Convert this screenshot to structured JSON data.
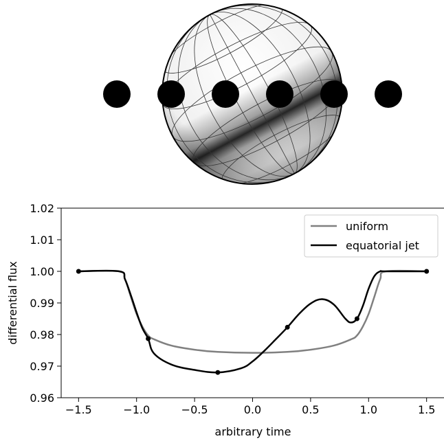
{
  "chart_data": {
    "type": "line",
    "title": "",
    "xlabel": "arbitrary time",
    "ylabel": "differential flux",
    "xlim": [
      -1.65,
      1.65
    ],
    "ylim": [
      0.96,
      1.02
    ],
    "grid": false,
    "legend_position": "top-right",
    "xticks": [
      -1.5,
      -1.0,
      -0.5,
      0.0,
      0.5,
      1.0,
      1.5
    ],
    "xtick_labels": [
      "−1.5",
      "−1.0",
      "−0.5",
      "0.0",
      "0.5",
      "1.0",
      "1.5"
    ],
    "yticks": [
      0.96,
      0.97,
      0.98,
      0.99,
      1.0,
      1.01,
      1.02
    ],
    "ytick_labels": [
      "0.96",
      "0.97",
      "0.98",
      "0.99",
      "1.00",
      "1.01",
      "1.02"
    ],
    "series": [
      {
        "name": "uniform",
        "color": "#808080",
        "x": [
          -1.5,
          -1.15,
          -1.1,
          -1.05,
          -1.0,
          -0.95,
          -0.9,
          -0.85,
          -0.7,
          -0.5,
          -0.3,
          0.0,
          0.3,
          0.5,
          0.7,
          0.85,
          0.9,
          0.95,
          1.0,
          1.05,
          1.1,
          1.15,
          1.5
        ],
        "values": [
          1.0,
          1.0,
          0.9975,
          0.992,
          0.9865,
          0.9825,
          0.9797,
          0.9785,
          0.9765,
          0.9752,
          0.9745,
          0.9742,
          0.9745,
          0.9752,
          0.9765,
          0.9785,
          0.9797,
          0.9825,
          0.9865,
          0.992,
          0.9975,
          1.0,
          1.0
        ]
      },
      {
        "name": "equatorial jet",
        "color": "#000000",
        "x": [
          -1.5,
          -1.15,
          -1.1,
          -1.05,
          -1.0,
          -0.95,
          -0.9,
          -0.85,
          -0.7,
          -0.5,
          -0.3,
          -0.1,
          0.0,
          0.1,
          0.2,
          0.3,
          0.4,
          0.5,
          0.6,
          0.7,
          0.8,
          0.85,
          0.9,
          0.95,
          1.0,
          1.05,
          1.1,
          1.15,
          1.5
        ],
        "values": [
          1.0,
          1.0,
          0.9975,
          0.9925,
          0.987,
          0.982,
          0.9787,
          0.974,
          0.9705,
          0.9688,
          0.968,
          0.9693,
          0.9715,
          0.9748,
          0.9785,
          0.9823,
          0.9865,
          0.9898,
          0.9912,
          0.9895,
          0.985,
          0.9838,
          0.985,
          0.989,
          0.9945,
          0.9985,
          1.0,
          1.0,
          1.0
        ]
      }
    ],
    "markers": {
      "series": "equatorial jet",
      "x": [
        -1.5,
        -0.9,
        -0.3,
        0.3,
        0.9,
        1.5
      ],
      "values": [
        1.0,
        0.9787,
        0.968,
        0.9823,
        0.985,
        1.0
      ]
    }
  },
  "illustration": {
    "planet_description_icon": "banded-sphere-icon",
    "transit_positions": 6
  }
}
